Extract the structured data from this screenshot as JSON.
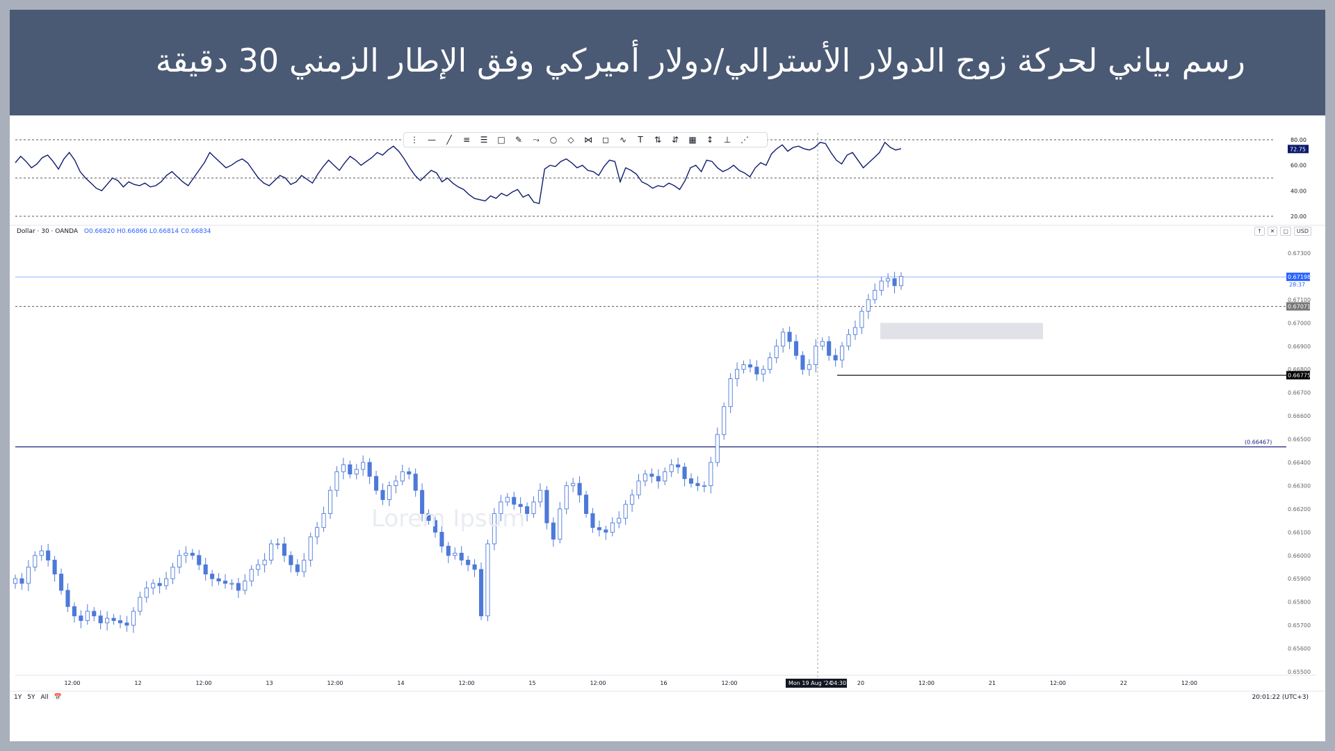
{
  "header": {
    "title": "رسم بياني لحركة زوج الدولار الأسترالي/دولار أميركي وفق الإطار الزمني 30 دقيقة"
  },
  "symbol_bar": {
    "symbol": "Dollar · 30 · OANDA",
    "ohlc": "O0.66820 H0.66866 L0.66814 C0.66834"
  },
  "currency": "USD",
  "watermark": "Lorem Ipsum",
  "bottom": {
    "ranges": [
      "1Y",
      "5Y",
      "All"
    ],
    "clock": "20:01:22 (UTC+3)"
  },
  "toolbar_icons": [
    "drag-handle-icon",
    "horizontal-ray-icon",
    "trend-line-icon",
    "parallel-channel-icon",
    "fib-retracement-icon",
    "rectangle-icon",
    "brush-icon",
    "path-icon",
    "circle-icon",
    "rotated-rectangle-icon",
    "pattern-icon",
    "callout-icon",
    "elliott-wave-icon",
    "text-icon",
    "long-position-icon",
    "short-position-icon",
    "grid-icon",
    "price-line-icon",
    "measure-icon",
    "gann-fan-icon"
  ],
  "chart_data": [
    {
      "type": "line",
      "name": "rsi",
      "ylim": [
        20,
        80
      ],
      "y_ticks": [
        "80.00",
        "60.00",
        "40.00",
        "20.00"
      ],
      "levels": [
        80,
        50,
        20
      ],
      "current_label": "72.75",
      "values": [
        62,
        67,
        63,
        58,
        61,
        66,
        68,
        63,
        57,
        65,
        70,
        64,
        55,
        50,
        46,
        42,
        40,
        45,
        50,
        48,
        43,
        47,
        45,
        44,
        46,
        43,
        44,
        47,
        52,
        55,
        51,
        47,
        44,
        50,
        56,
        62,
        70,
        66,
        62,
        58,
        60,
        63,
        65,
        62,
        56,
        50,
        46,
        44,
        48,
        52,
        50,
        45,
        47,
        52,
        49,
        46,
        53,
        59,
        64,
        60,
        56,
        62,
        67,
        64,
        60,
        63,
        66,
        70,
        68,
        72,
        75,
        71,
        65,
        58,
        52,
        48,
        52,
        56,
        54,
        47,
        50,
        46,
        43,
        41,
        37,
        34,
        33,
        32,
        36,
        34,
        38,
        36,
        39,
        41,
        35,
        37,
        31,
        30,
        57,
        60,
        59,
        63,
        65,
        62,
        58,
        60,
        56,
        55,
        52,
        59,
        64,
        63,
        47,
        58,
        56,
        53,
        47,
        45,
        42,
        44,
        43,
        46,
        44,
        41,
        48,
        58,
        60,
        55,
        64,
        63,
        58,
        55,
        57,
        60,
        56,
        54,
        51,
        58,
        62,
        60,
        69,
        73,
        76,
        71,
        74,
        75,
        73,
        72,
        74,
        78,
        77,
        70,
        64,
        61,
        68,
        70,
        64,
        58,
        62,
        66,
        70,
        78,
        74,
        72,
        73
      ]
    },
    {
      "type": "candlestick",
      "name": "price",
      "y_ticks": [
        "0.67300",
        "0.67200",
        "0.67100",
        "0.67000",
        "0.66900",
        "0.66800",
        "0.66700",
        "0.66600",
        "0.66500",
        "0.66400",
        "0.66300",
        "0.66200",
        "0.66100",
        "0.66000",
        "0.65900",
        "0.65800",
        "0.65700",
        "0.65600",
        "0.65500"
      ],
      "ylim": [
        0.655,
        0.673
      ],
      "x_labels": [
        "12:00",
        "12",
        "12:00",
        "13",
        "12:00",
        "14",
        "12:00",
        "15",
        "12:00",
        "16",
        "12:00",
        "12:00",
        "20",
        "12:00",
        "21",
        "12:00",
        "22",
        "12:00"
      ],
      "crosshair_date": "Mon 19 Aug '24",
      "crosshair_time": "04:30",
      "levels": [
        {
          "label": "(0.66467)",
          "value": 0.66467,
          "color": "#1a237e"
        },
        {
          "label": "0.66775",
          "value": 0.66775,
          "color": "#000000"
        },
        {
          "label": "0.67071",
          "value": 0.67071,
          "color": "#777777"
        },
        {
          "label": "0.67198",
          "value": 0.67198,
          "color": "#2962ff"
        }
      ],
      "current_price": "0.67198",
      "countdown": "28:37",
      "closes": [
        0.659,
        0.6588,
        0.6595,
        0.66,
        0.6602,
        0.6598,
        0.6592,
        0.6585,
        0.6578,
        0.6574,
        0.6572,
        0.6576,
        0.6574,
        0.6571,
        0.6573,
        0.6572,
        0.6571,
        0.657,
        0.6576,
        0.6582,
        0.6586,
        0.6588,
        0.6587,
        0.659,
        0.6595,
        0.66,
        0.6601,
        0.66,
        0.6596,
        0.6592,
        0.659,
        0.6589,
        0.6588,
        0.6588,
        0.6585,
        0.6589,
        0.6594,
        0.6596,
        0.6598,
        0.6605,
        0.6605,
        0.66,
        0.6596,
        0.6593,
        0.6598,
        0.6608,
        0.6612,
        0.6618,
        0.6628,
        0.6636,
        0.6639,
        0.6635,
        0.6637,
        0.664,
        0.6634,
        0.6628,
        0.6624,
        0.663,
        0.6632,
        0.6636,
        0.6635,
        0.6628,
        0.6618,
        0.6615,
        0.661,
        0.6604,
        0.66,
        0.6601,
        0.6598,
        0.6596,
        0.6594,
        0.6574,
        0.6605,
        0.6618,
        0.6623,
        0.6625,
        0.6622,
        0.6621,
        0.6618,
        0.6623,
        0.6628,
        0.6614,
        0.6607,
        0.662,
        0.663,
        0.6631,
        0.6626,
        0.6618,
        0.6612,
        0.6611,
        0.661,
        0.6614,
        0.6616,
        0.6622,
        0.6626,
        0.6632,
        0.6635,
        0.6634,
        0.6632,
        0.6636,
        0.6639,
        0.6638,
        0.6633,
        0.6631,
        0.663,
        0.663,
        0.664,
        0.6652,
        0.6664,
        0.6676,
        0.668,
        0.6682,
        0.6681,
        0.6678,
        0.668,
        0.6685,
        0.669,
        0.6696,
        0.6692,
        0.6686,
        0.668,
        0.6682,
        0.669,
        0.6692,
        0.6686,
        0.6684,
        0.669,
        0.6695,
        0.6698,
        0.6705,
        0.671,
        0.6714,
        0.6718,
        0.6719,
        0.6716,
        0.672
      ]
    }
  ]
}
